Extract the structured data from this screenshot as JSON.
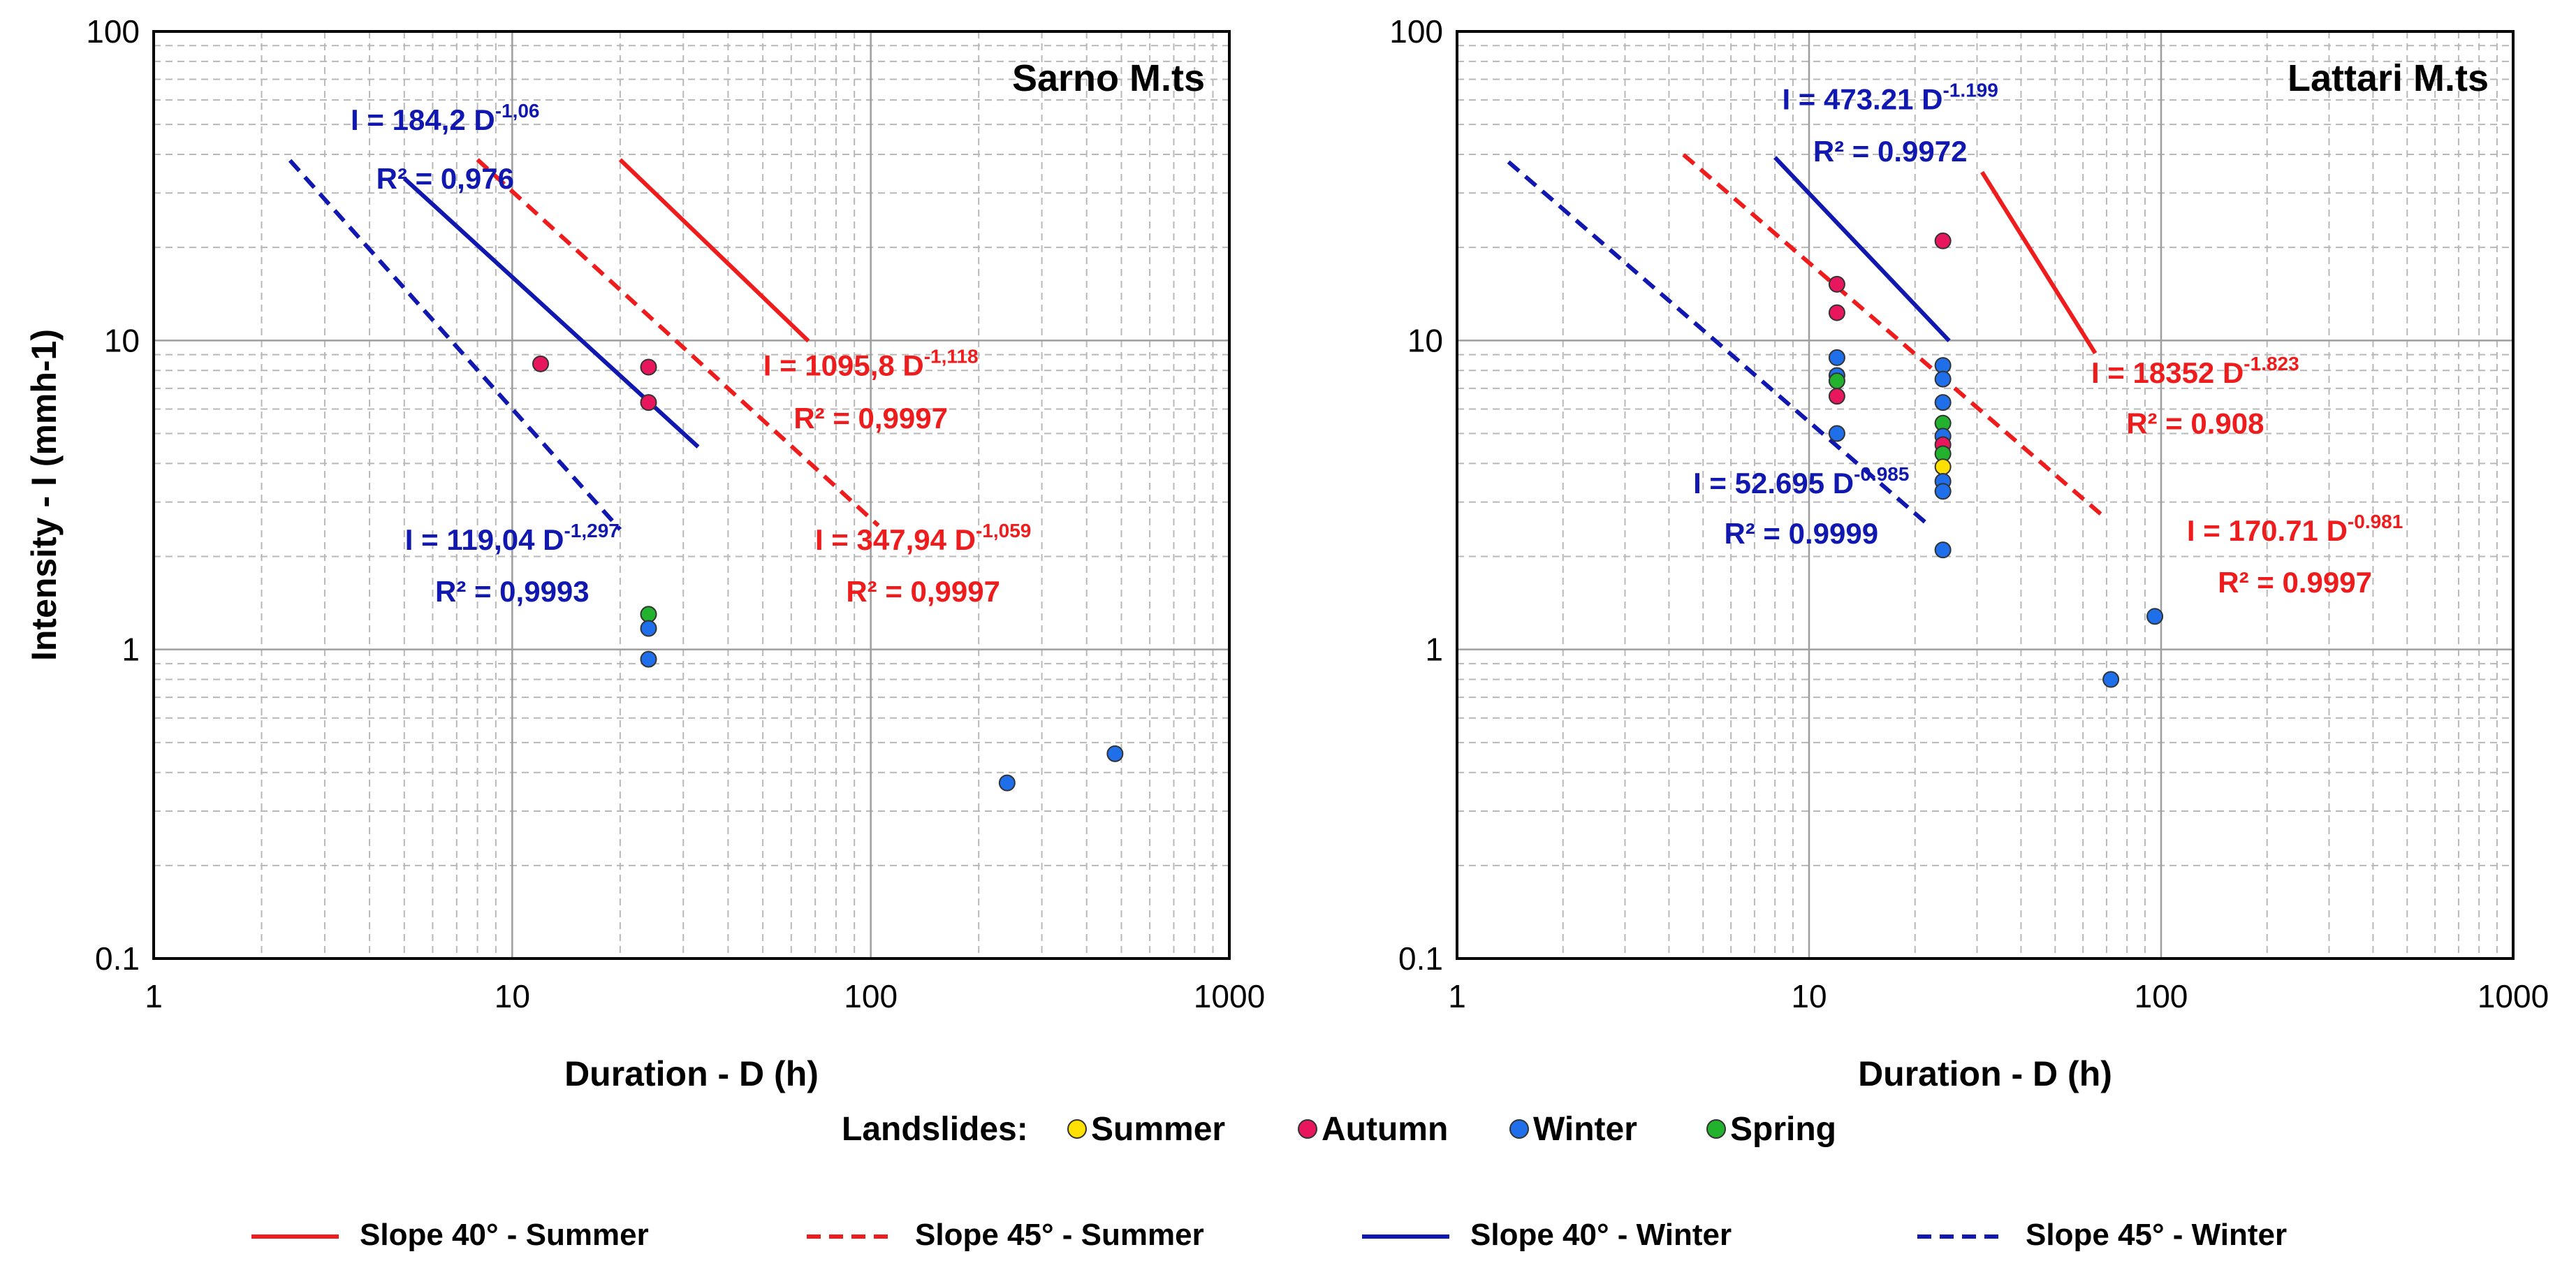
{
  "colors": {
    "summer": "#FFE000",
    "autumn": "#E8175D",
    "winter": "#1F6FEA",
    "spring": "#22B22E",
    "red_line": "#EE1C1C",
    "blue_line": "#1018B0",
    "grid_major": "#9E9E9E",
    "grid_minor": "#B8B8B8"
  },
  "legend": {
    "markers_title": "Landslides:",
    "markers": [
      {
        "label": "Summer",
        "color_key": "summer"
      },
      {
        "label": "Autumn",
        "color_key": "autumn"
      },
      {
        "label": "Winter",
        "color_key": "winter"
      },
      {
        "label": "Spring",
        "color_key": "spring"
      }
    ],
    "lines": [
      {
        "label": "Slope 40° - Summer",
        "color_key": "red_line",
        "dashed": false
      },
      {
        "label": "Slope 45° - Summer",
        "color_key": "red_line",
        "dashed": true
      },
      {
        "label": "Slope 40° - Winter",
        "color_key": "blue_line",
        "dashed": false
      },
      {
        "label": "Slope 45° - Winter",
        "color_key": "blue_line",
        "dashed": true
      }
    ]
  },
  "chart_data": [
    {
      "type": "scatter",
      "scale": "log-log",
      "title": "Sarno M.ts",
      "xlabel": "Duration - D (h)",
      "ylabel": "Intensity - I (mmh-1)",
      "xlim": [
        1,
        1000
      ],
      "ylim": [
        0.1,
        100
      ],
      "x_ticks": [
        "1",
        "10",
        "100",
        "1000"
      ],
      "y_ticks": [
        "0.1",
        "1",
        "10",
        "100"
      ],
      "points": [
        {
          "season": "autumn",
          "x": 12,
          "y": 8.4
        },
        {
          "season": "autumn",
          "x": 24,
          "y": 8.2
        },
        {
          "season": "autumn",
          "x": 24,
          "y": 6.3
        },
        {
          "season": "spring",
          "x": 24,
          "y": 1.3
        },
        {
          "season": "winter",
          "x": 24,
          "y": 1.17
        },
        {
          "season": "winter",
          "x": 24,
          "y": 0.93
        },
        {
          "season": "winter",
          "x": 240,
          "y": 0.37
        },
        {
          "season": "winter",
          "x": 480,
          "y": 0.46
        }
      ],
      "lines": [
        {
          "name": "Slope 40° - Summer",
          "color_key": "red_line",
          "dashed": false,
          "coef": 1095.8,
          "exp": -1.118,
          "x_range": [
            20,
            67
          ]
        },
        {
          "name": "Slope 45° - Summer",
          "color_key": "red_line",
          "dashed": true,
          "coef": 347.94,
          "exp": -1.059,
          "x_range": [
            8,
            105
          ]
        },
        {
          "name": "Slope 40° - Winter",
          "color_key": "blue_line",
          "dashed": false,
          "coef": 184.2,
          "exp": -1.06,
          "x_range": [
            5,
            33
          ]
        },
        {
          "name": "Slope 45° - Winter",
          "color_key": "blue_line",
          "dashed": true,
          "coef": 119.04,
          "exp": -1.297,
          "x_range": [
            2.4,
            20
          ]
        }
      ],
      "equations": [
        {
          "base": "I = 184,2 D",
          "exp": "-1,06",
          "r2": "R² = 0,976",
          "color_key": "blue_line",
          "x": 6.5,
          "y": 48,
          "r2_x": 6.5,
          "r2_y": 31
        },
        {
          "base": "I = 1095,8 D",
          "exp": "-1,118",
          "r2": "R² = 0,9997",
          "color_key": "red_line",
          "x": 100,
          "y": 7.7,
          "r2_x": 100,
          "r2_y": 5.2
        },
        {
          "base": "I = 119,04 D",
          "exp": "-1,297",
          "r2": "R² = 0,9993",
          "color_key": "blue_line",
          "x": 10,
          "y": 2.1,
          "r2_x": 10,
          "r2_y": 1.43
        },
        {
          "base": "I = 347,94 D",
          "exp": "-1,059",
          "r2": "R² = 0,9997",
          "color_key": "red_line",
          "x": 140,
          "y": 2.1,
          "r2_x": 140,
          "r2_y": 1.43
        }
      ]
    },
    {
      "type": "scatter",
      "scale": "log-log",
      "title": "Lattari M.ts",
      "xlabel": "Duration - D (h)",
      "ylabel": "",
      "xlim": [
        1,
        1000
      ],
      "ylim": [
        0.1,
        100
      ],
      "x_ticks": [
        "1",
        "10",
        "100",
        "1000"
      ],
      "y_ticks": [
        "0.1",
        "1",
        "10",
        "100"
      ],
      "points": [
        {
          "season": "autumn",
          "x": 24,
          "y": 21
        },
        {
          "season": "autumn",
          "x": 12,
          "y": 15.2
        },
        {
          "season": "autumn",
          "x": 12,
          "y": 12.3
        },
        {
          "season": "winter",
          "x": 12,
          "y": 8.8
        },
        {
          "season": "winter",
          "x": 12,
          "y": 7.7
        },
        {
          "season": "spring",
          "x": 12,
          "y": 7.4
        },
        {
          "season": "autumn",
          "x": 12,
          "y": 6.6
        },
        {
          "season": "winter",
          "x": 12,
          "y": 5.0
        },
        {
          "season": "winter",
          "x": 24,
          "y": 8.3
        },
        {
          "season": "winter",
          "x": 24,
          "y": 7.5
        },
        {
          "season": "winter",
          "x": 24,
          "y": 6.3
        },
        {
          "season": "spring",
          "x": 24,
          "y": 5.4
        },
        {
          "season": "winter",
          "x": 24,
          "y": 4.9
        },
        {
          "season": "autumn",
          "x": 24,
          "y": 4.6
        },
        {
          "season": "spring",
          "x": 24,
          "y": 4.3
        },
        {
          "season": "summer",
          "x": 24,
          "y": 3.9
        },
        {
          "season": "winter",
          "x": 24,
          "y": 3.5
        },
        {
          "season": "winter",
          "x": 24,
          "y": 3.25
        },
        {
          "season": "winter",
          "x": 24,
          "y": 2.1
        },
        {
          "season": "winter",
          "x": 72,
          "y": 0.8
        },
        {
          "season": "winter",
          "x": 96,
          "y": 1.28
        }
      ],
      "lines": [
        {
          "name": "Slope 40° - Summer",
          "color_key": "red_line",
          "dashed": false,
          "coef": 18352,
          "exp": -1.823,
          "x_range": [
            31,
            65
          ]
        },
        {
          "name": "Slope 45° - Summer",
          "color_key": "red_line",
          "dashed": true,
          "coef": 170.71,
          "exp": -0.981,
          "x_range": [
            4.4,
            70
          ]
        },
        {
          "name": "Slope 40° - Winter",
          "color_key": "blue_line",
          "dashed": false,
          "coef": 473.21,
          "exp": -1.199,
          "x_range": [
            8,
            25
          ]
        },
        {
          "name": "Slope 45° - Winter",
          "color_key": "blue_line",
          "dashed": true,
          "coef": 52.695,
          "exp": -0.985,
          "x_range": [
            1.4,
            22
          ]
        }
      ],
      "equations": [
        {
          "base": "I = 473.21 D",
          "exp": "-1.199",
          "r2": "R² = 0.9972",
          "color_key": "blue_line",
          "x": 17,
          "y": 56,
          "r2_x": 17,
          "r2_y": 38
        },
        {
          "base": "I = 18352 D",
          "exp": "-1.823",
          "r2": "R² = 0.908",
          "color_key": "red_line",
          "x": 125,
          "y": 7.3,
          "r2_x": 125,
          "r2_y": 5.0
        },
        {
          "base": "I = 52.695 D",
          "exp": "-0.985",
          "r2": "R² = 0.9999",
          "color_key": "blue_line",
          "x": 9.5,
          "y": 3.2,
          "r2_x": 9.5,
          "r2_y": 2.2
        },
        {
          "base": "I = 170.71 D",
          "exp": "-0.981",
          "r2": "R² = 0.9997",
          "color_key": "red_line",
          "x": 240,
          "y": 2.25,
          "r2_x": 240,
          "r2_y": 1.53
        }
      ]
    }
  ]
}
